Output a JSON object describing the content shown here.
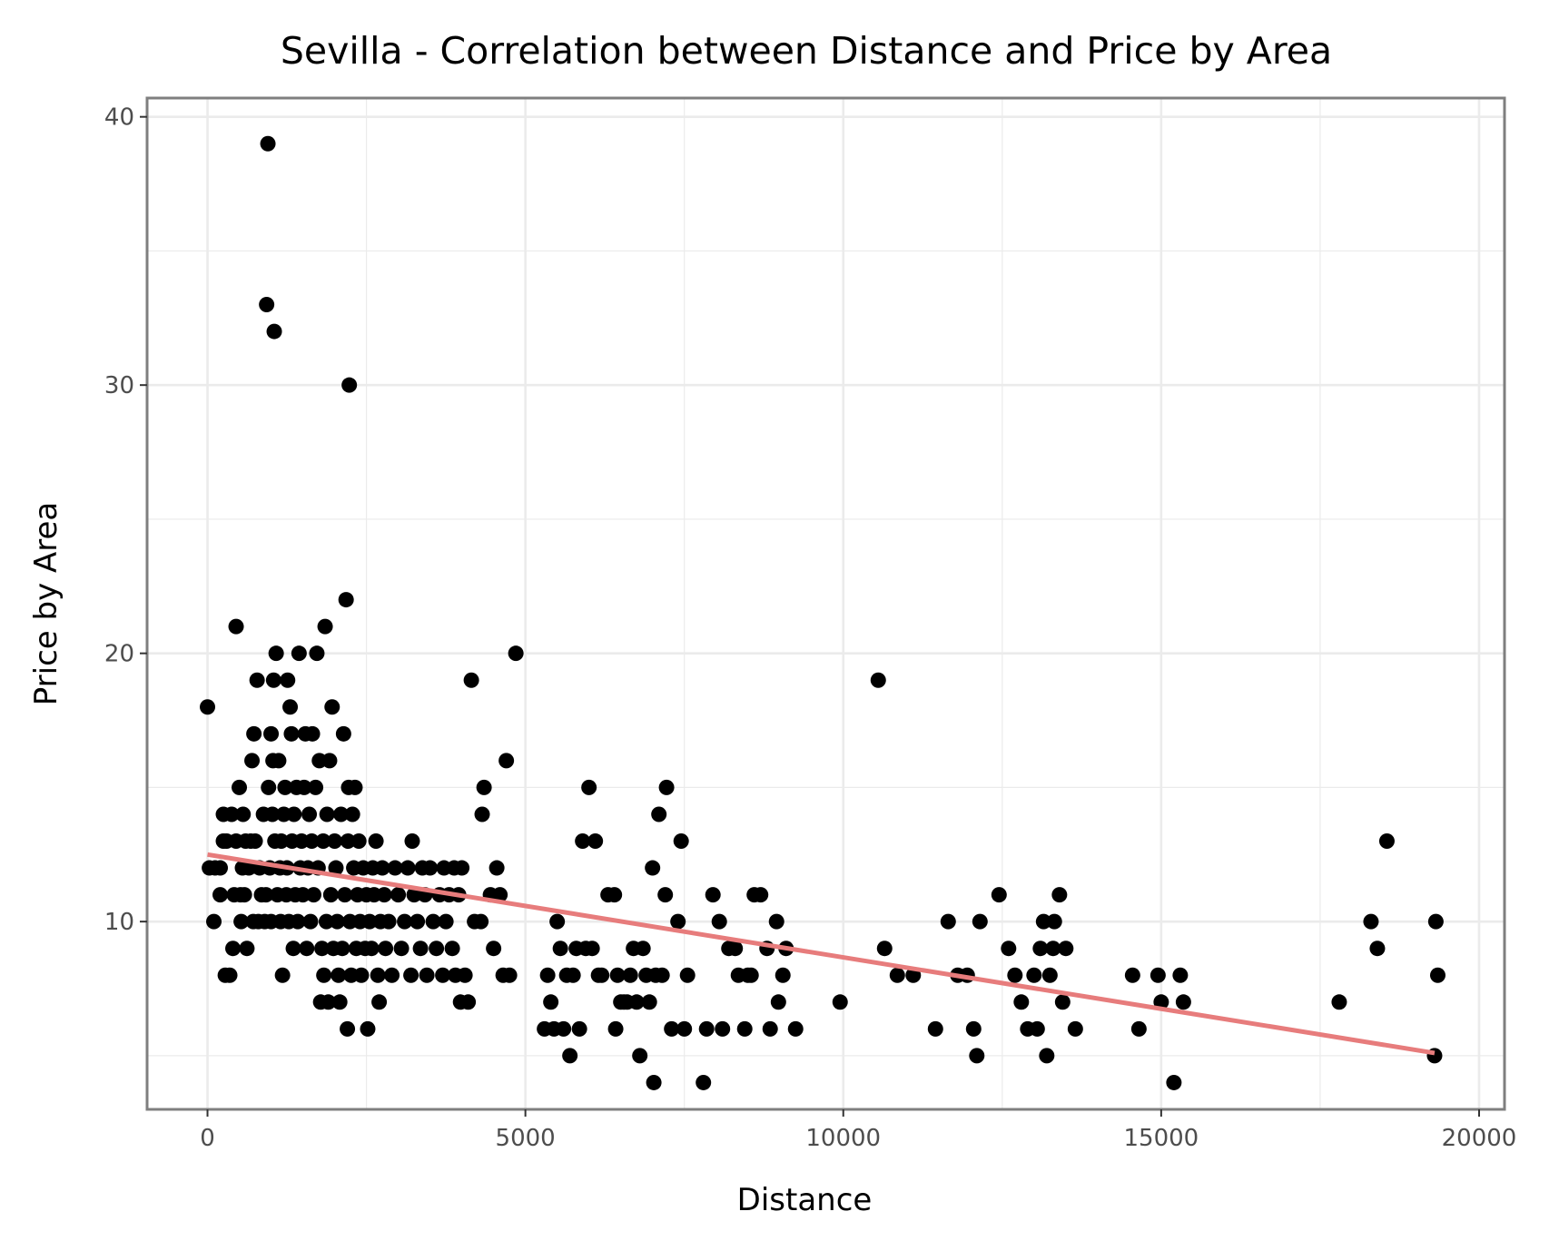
{
  "chart_data": {
    "type": "scatter",
    "title": "Sevilla - Correlation between Distance and Price by Area",
    "xlabel": "Distance",
    "ylabel": "Price by Area",
    "xlim": [
      -950,
      20400
    ],
    "ylim": [
      3.0,
      40.7
    ],
    "x_ticks": [
      0,
      5000,
      10000,
      15000,
      20000
    ],
    "x_tick_labels": [
      "0",
      "5000",
      "10000",
      "15000",
      "20000"
    ],
    "y_ticks": [
      10,
      20,
      30,
      40
    ],
    "y_tick_labels": [
      "10",
      "20",
      "30",
      "40"
    ],
    "grid": true,
    "legend": "none",
    "colors": {
      "points": "#000000",
      "trend": "#e77c7c",
      "panel_border": "#7f7f7f",
      "grid": "#ebebeb"
    },
    "trend_line": {
      "x": [
        0,
        19300
      ],
      "y": [
        12.5,
        5.1
      ]
    },
    "points": [
      [
        0,
        18
      ],
      [
        30,
        12
      ],
      [
        120,
        12
      ],
      [
        200,
        12
      ],
      [
        100,
        10
      ],
      [
        200,
        11
      ],
      [
        250,
        13
      ],
      [
        250,
        14
      ],
      [
        300,
        13
      ],
      [
        280,
        8
      ],
      [
        350,
        8
      ],
      [
        380,
        14
      ],
      [
        400,
        9
      ],
      [
        420,
        11
      ],
      [
        450,
        13
      ],
      [
        450,
        21
      ],
      [
        500,
        15
      ],
      [
        520,
        11
      ],
      [
        530,
        10
      ],
      [
        550,
        12
      ],
      [
        560,
        14
      ],
      [
        580,
        11
      ],
      [
        600,
        13
      ],
      [
        620,
        9
      ],
      [
        650,
        12
      ],
      [
        680,
        13
      ],
      [
        700,
        16
      ],
      [
        720,
        10
      ],
      [
        730,
        17
      ],
      [
        750,
        13
      ],
      [
        780,
        19
      ],
      [
        800,
        10
      ],
      [
        820,
        12
      ],
      [
        850,
        11
      ],
      [
        880,
        14
      ],
      [
        900,
        10
      ],
      [
        920,
        11
      ],
      [
        930,
        33
      ],
      [
        950,
        39
      ],
      [
        960,
        15
      ],
      [
        980,
        12
      ],
      [
        1000,
        10
      ],
      [
        1000,
        17
      ],
      [
        1020,
        14
      ],
      [
        1030,
        16
      ],
      [
        1040,
        19
      ],
      [
        1050,
        32
      ],
      [
        1060,
        13
      ],
      [
        1080,
        20
      ],
      [
        1100,
        11
      ],
      [
        1120,
        16
      ],
      [
        1140,
        12
      ],
      [
        1150,
        10
      ],
      [
        1160,
        13
      ],
      [
        1180,
        8
      ],
      [
        1200,
        14
      ],
      [
        1220,
        15
      ],
      [
        1240,
        11
      ],
      [
        1250,
        12
      ],
      [
        1260,
        19
      ],
      [
        1280,
        10
      ],
      [
        1300,
        18
      ],
      [
        1320,
        17
      ],
      [
        1330,
        13
      ],
      [
        1350,
        9
      ],
      [
        1360,
        14
      ],
      [
        1380,
        11
      ],
      [
        1400,
        15
      ],
      [
        1420,
        10
      ],
      [
        1440,
        20
      ],
      [
        1460,
        12
      ],
      [
        1480,
        13
      ],
      [
        1500,
        11
      ],
      [
        1520,
        15
      ],
      [
        1540,
        17
      ],
      [
        1560,
        9
      ],
      [
        1580,
        12
      ],
      [
        1600,
        14
      ],
      [
        1620,
        10
      ],
      [
        1640,
        13
      ],
      [
        1650,
        17
      ],
      [
        1670,
        11
      ],
      [
        1700,
        15
      ],
      [
        1720,
        20
      ],
      [
        1740,
        12
      ],
      [
        1760,
        16
      ],
      [
        1780,
        7
      ],
      [
        1800,
        9
      ],
      [
        1820,
        13
      ],
      [
        1830,
        8
      ],
      [
        1850,
        21
      ],
      [
        1870,
        10
      ],
      [
        1880,
        14
      ],
      [
        1900,
        7
      ],
      [
        1920,
        16
      ],
      [
        1940,
        11
      ],
      [
        1960,
        18
      ],
      [
        1980,
        9
      ],
      [
        2000,
        13
      ],
      [
        2020,
        12
      ],
      [
        2040,
        10
      ],
      [
        2060,
        8
      ],
      [
        2080,
        7
      ],
      [
        2100,
        14
      ],
      [
        2120,
        9
      ],
      [
        2140,
        17
      ],
      [
        2160,
        11
      ],
      [
        2180,
        22
      ],
      [
        2200,
        6
      ],
      [
        2210,
        13
      ],
      [
        2220,
        15
      ],
      [
        2230,
        30
      ],
      [
        2240,
        10
      ],
      [
        2260,
        8
      ],
      [
        2280,
        14
      ],
      [
        2300,
        12
      ],
      [
        2320,
        15
      ],
      [
        2340,
        9
      ],
      [
        2360,
        11
      ],
      [
        2380,
        13
      ],
      [
        2400,
        10
      ],
      [
        2420,
        8
      ],
      [
        2450,
        12
      ],
      [
        2480,
        9
      ],
      [
        2500,
        11
      ],
      [
        2520,
        6
      ],
      [
        2550,
        10
      ],
      [
        2580,
        9
      ],
      [
        2600,
        12
      ],
      [
        2620,
        11
      ],
      [
        2650,
        13
      ],
      [
        2680,
        8
      ],
      [
        2700,
        7
      ],
      [
        2720,
        10
      ],
      [
        2750,
        12
      ],
      [
        2780,
        11
      ],
      [
        2800,
        9
      ],
      [
        2850,
        10
      ],
      [
        2900,
        8
      ],
      [
        2950,
        12
      ],
      [
        3000,
        11
      ],
      [
        3050,
        9
      ],
      [
        3100,
        10
      ],
      [
        3150,
        12
      ],
      [
        3200,
        8
      ],
      [
        3220,
        13
      ],
      [
        3250,
        11
      ],
      [
        3300,
        10
      ],
      [
        3350,
        9
      ],
      [
        3380,
        12
      ],
      [
        3420,
        11
      ],
      [
        3450,
        8
      ],
      [
        3500,
        12
      ],
      [
        3550,
        10
      ],
      [
        3600,
        9
      ],
      [
        3650,
        11
      ],
      [
        3700,
        8
      ],
      [
        3720,
        12
      ],
      [
        3750,
        10
      ],
      [
        3800,
        11
      ],
      [
        3850,
        9
      ],
      [
        3880,
        12
      ],
      [
        3900,
        8
      ],
      [
        3950,
        11
      ],
      [
        3980,
        7
      ],
      [
        4000,
        12
      ],
      [
        4050,
        8
      ],
      [
        4100,
        7
      ],
      [
        4150,
        19
      ],
      [
        4200,
        10
      ],
      [
        4300,
        10
      ],
      [
        4320,
        14
      ],
      [
        4350,
        15
      ],
      [
        4450,
        11
      ],
      [
        4500,
        9
      ],
      [
        4550,
        12
      ],
      [
        4600,
        11
      ],
      [
        4650,
        8
      ],
      [
        4700,
        16
      ],
      [
        4750,
        8
      ],
      [
        4850,
        20
      ],
      [
        5300,
        6
      ],
      [
        5350,
        8
      ],
      [
        5400,
        7
      ],
      [
        5450,
        6
      ],
      [
        5500,
        10
      ],
      [
        5550,
        9
      ],
      [
        5600,
        6
      ],
      [
        5650,
        8
      ],
      [
        5700,
        5
      ],
      [
        5750,
        8
      ],
      [
        5800,
        9
      ],
      [
        5850,
        6
      ],
      [
        5900,
        13
      ],
      [
        5950,
        9
      ],
      [
        6000,
        15
      ],
      [
        6050,
        9
      ],
      [
        6100,
        13
      ],
      [
        6150,
        8
      ],
      [
        6200,
        8
      ],
      [
        6300,
        11
      ],
      [
        6400,
        11
      ],
      [
        6420,
        6
      ],
      [
        6450,
        8
      ],
      [
        6500,
        7
      ],
      [
        6550,
        7
      ],
      [
        6600,
        7
      ],
      [
        6650,
        8
      ],
      [
        6700,
        9
      ],
      [
        6750,
        7
      ],
      [
        6800,
        5
      ],
      [
        6850,
        9
      ],
      [
        6900,
        8
      ],
      [
        6950,
        7
      ],
      [
        7000,
        12
      ],
      [
        7020,
        4
      ],
      [
        7050,
        8
      ],
      [
        7100,
        14
      ],
      [
        7150,
        8
      ],
      [
        7200,
        11
      ],
      [
        7220,
        15
      ],
      [
        7300,
        6
      ],
      [
        7400,
        10
      ],
      [
        7450,
        13
      ],
      [
        7500,
        6
      ],
      [
        7550,
        8
      ],
      [
        7800,
        4
      ],
      [
        7850,
        6
      ],
      [
        7950,
        11
      ],
      [
        8050,
        10
      ],
      [
        8100,
        6
      ],
      [
        8200,
        9
      ],
      [
        8300,
        9
      ],
      [
        8350,
        8
      ],
      [
        8450,
        6
      ],
      [
        8500,
        8
      ],
      [
        8550,
        8
      ],
      [
        8600,
        11
      ],
      [
        8700,
        11
      ],
      [
        8800,
        9
      ],
      [
        8850,
        6
      ],
      [
        8950,
        10
      ],
      [
        8980,
        7
      ],
      [
        9050,
        8
      ],
      [
        9100,
        9
      ],
      [
        9250,
        6
      ],
      [
        9950,
        7
      ],
      [
        10550,
        19
      ],
      [
        10650,
        9
      ],
      [
        10850,
        8
      ],
      [
        11100,
        8
      ],
      [
        11450,
        6
      ],
      [
        11650,
        10
      ],
      [
        11800,
        8
      ],
      [
        11950,
        8
      ],
      [
        12050,
        6
      ],
      [
        12100,
        5
      ],
      [
        12150,
        10
      ],
      [
        12450,
        11
      ],
      [
        12600,
        9
      ],
      [
        12700,
        8
      ],
      [
        12800,
        7
      ],
      [
        12900,
        6
      ],
      [
        13000,
        8
      ],
      [
        13050,
        6
      ],
      [
        13100,
        9
      ],
      [
        13150,
        10
      ],
      [
        13200,
        5
      ],
      [
        13250,
        8
      ],
      [
        13300,
        9
      ],
      [
        13320,
        10
      ],
      [
        13400,
        11
      ],
      [
        13450,
        7
      ],
      [
        13500,
        9
      ],
      [
        13650,
        6
      ],
      [
        14550,
        8
      ],
      [
        14650,
        6
      ],
      [
        14950,
        8
      ],
      [
        15000,
        7
      ],
      [
        15200,
        4
      ],
      [
        15300,
        8
      ],
      [
        15350,
        7
      ],
      [
        17800,
        7
      ],
      [
        18300,
        10
      ],
      [
        18400,
        9
      ],
      [
        18550,
        13
      ],
      [
        19300,
        5
      ],
      [
        19320,
        10
      ],
      [
        19350,
        8
      ]
    ]
  }
}
